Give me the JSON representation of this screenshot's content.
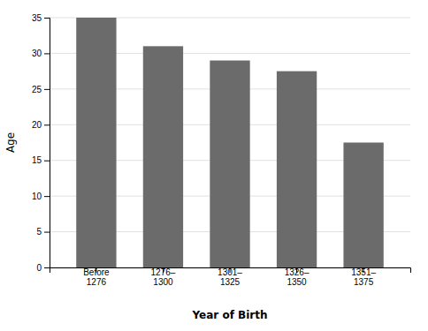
{
  "chart_data": {
    "type": "bar",
    "categories": [
      "Before\n1276",
      "1276–\n1300",
      "1301–\n1325",
      "1326–\n1350",
      "1351–\n1375"
    ],
    "values": [
      35,
      31,
      29,
      27.5,
      17.5
    ],
    "color": "#6b6b6b",
    "xlabel": "Year of Birth",
    "ylabel": "Age",
    "ylim": [
      0,
      35
    ],
    "yticks": [
      0,
      5,
      10,
      15,
      20,
      25,
      30,
      35
    ],
    "grid": true
  }
}
